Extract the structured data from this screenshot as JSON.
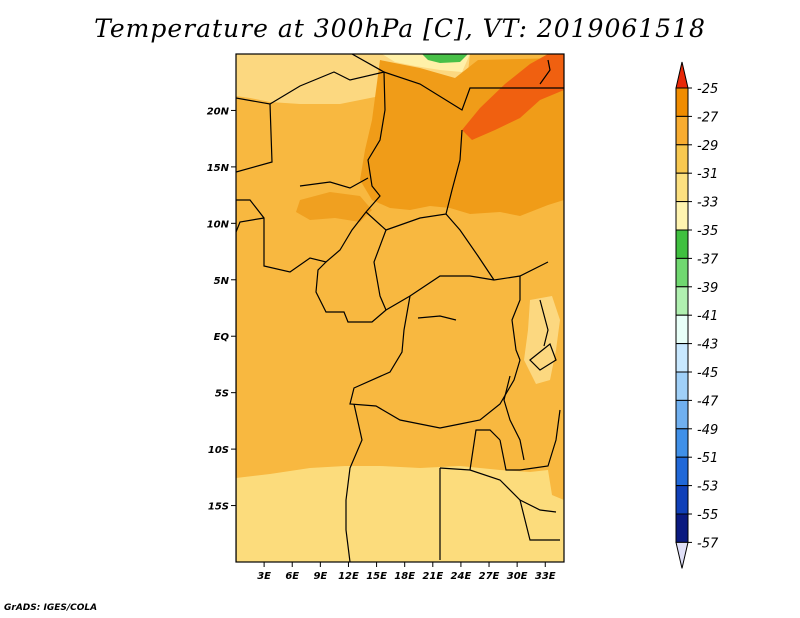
{
  "chart_data": {
    "type": "heatmap",
    "title": "Temperature at 300hPa [C], VT: 2019061518",
    "variable": "Temperature at 300hPa",
    "unit": "C",
    "valid_time": "2019061518",
    "credit": "GrADS: IGES/COLA",
    "lon_range": [
      0,
      35
    ],
    "lat_range": [
      -20,
      25
    ],
    "x_ticks": [
      {
        "value": 3,
        "label": "3E"
      },
      {
        "value": 6,
        "label": "6E"
      },
      {
        "value": 9,
        "label": "9E"
      },
      {
        "value": 12,
        "label": "12E"
      },
      {
        "value": 15,
        "label": "15E"
      },
      {
        "value": 18,
        "label": "18E"
      },
      {
        "value": 21,
        "label": "21E"
      },
      {
        "value": 24,
        "label": "24E"
      },
      {
        "value": 27,
        "label": "27E"
      },
      {
        "value": 30,
        "label": "30E"
      },
      {
        "value": 33,
        "label": "33E"
      }
    ],
    "y_ticks": [
      {
        "value": 20,
        "label": "20N"
      },
      {
        "value": 15,
        "label": "15N"
      },
      {
        "value": 10,
        "label": "10N"
      },
      {
        "value": 5,
        "label": "5N"
      },
      {
        "value": 0,
        "label": "EQ"
      },
      {
        "value": -5,
        "label": "5S"
      },
      {
        "value": -10,
        "label": "10S"
      },
      {
        "value": -15,
        "label": "15S"
      }
    ],
    "colorbar": {
      "levels": [
        -25,
        -27,
        -29,
        -31,
        -33,
        -35,
        -37,
        -39,
        -41,
        -43,
        -45,
        -47,
        -49,
        -51,
        -53,
        -55,
        -57
      ],
      "colors": [
        "#f06010",
        "#f08c00",
        "#f8ac30",
        "#f8c850",
        "#fce080",
        "#fff4b0",
        "#40c040",
        "#70d870",
        "#b0f0b0",
        "#e8fff8",
        "#c8e8ff",
        "#a0d0f8",
        "#70b0f0",
        "#4090e8",
        "#2068d8",
        "#1040b8",
        "#0a1a80"
      ],
      "top_arrow_color": "#e82808",
      "bottom_arrow_color": "#e0e0f8"
    }
  }
}
